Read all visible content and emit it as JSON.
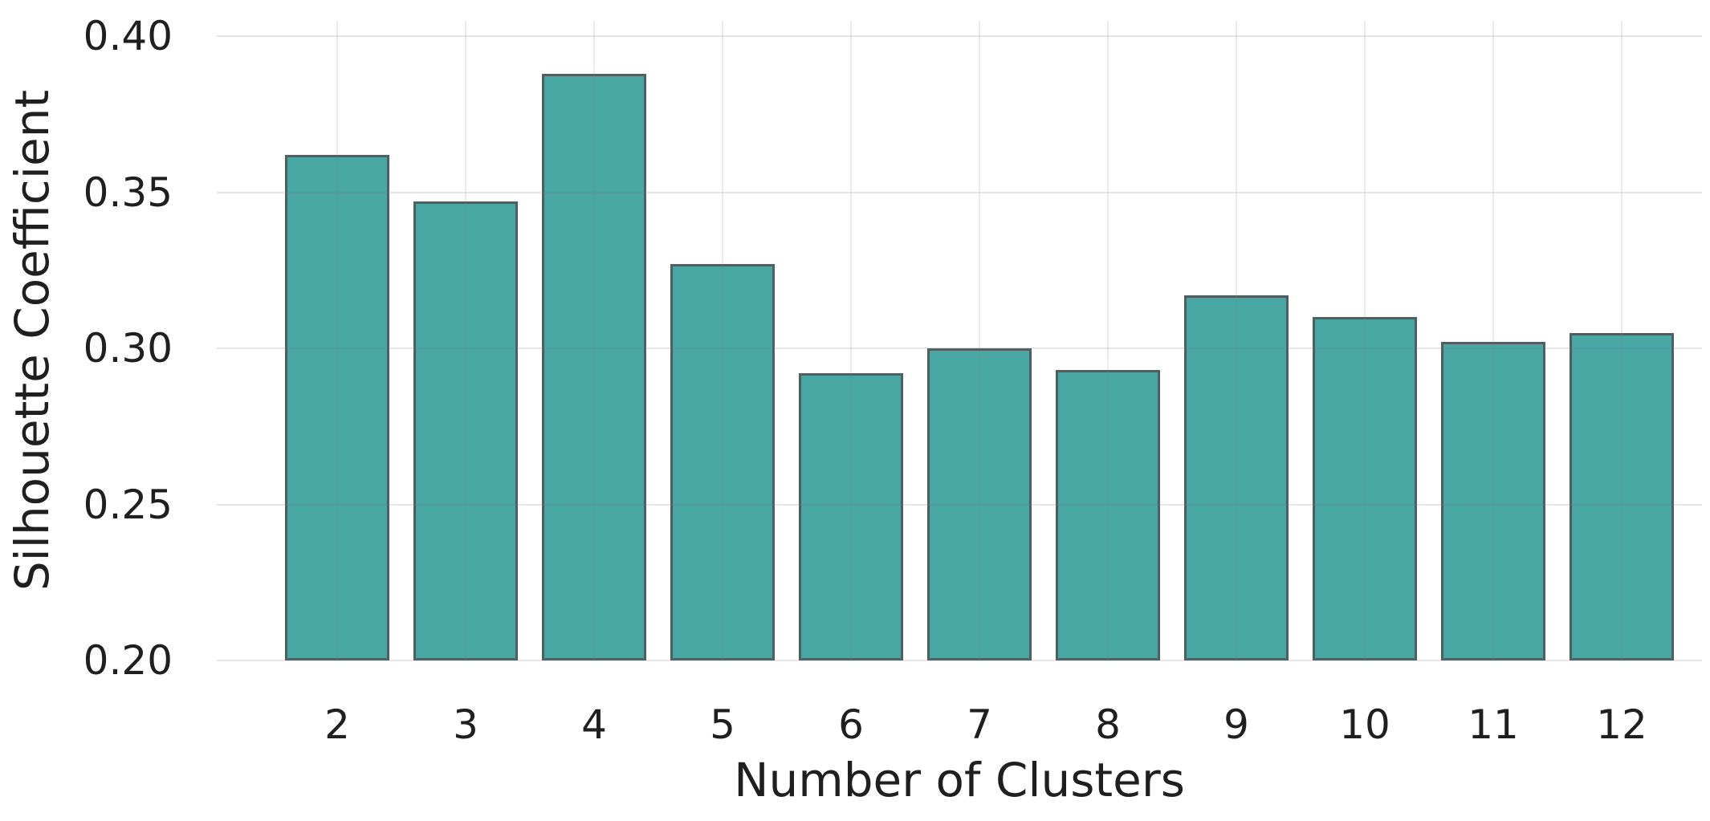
{
  "chart_data": {
    "type": "bar",
    "title": "",
    "xlabel": "Number of Clusters",
    "ylabel": "Silhouette Coefficient",
    "categories": [
      "2",
      "3",
      "4",
      "5",
      "6",
      "7",
      "8",
      "9",
      "10",
      "11",
      "12"
    ],
    "values": [
      0.362,
      0.347,
      0.388,
      0.327,
      0.292,
      0.3,
      0.293,
      0.317,
      0.31,
      0.302,
      0.305
    ],
    "ylim": [
      0.2,
      0.405
    ],
    "y_ticks": [
      0.4,
      0.35,
      0.3,
      0.25,
      0.2
    ],
    "y_tick_labels": [
      "0.40",
      "0.35",
      "0.30",
      "0.25",
      "0.20"
    ],
    "grid": "both",
    "legend": "none",
    "colors": {
      "bar_fill": "#48a6a3",
      "bar_edge": "#4d6061",
      "gridline": "#e8e8e8",
      "text": "#1f1f1f",
      "background": "#ffffff"
    }
  }
}
